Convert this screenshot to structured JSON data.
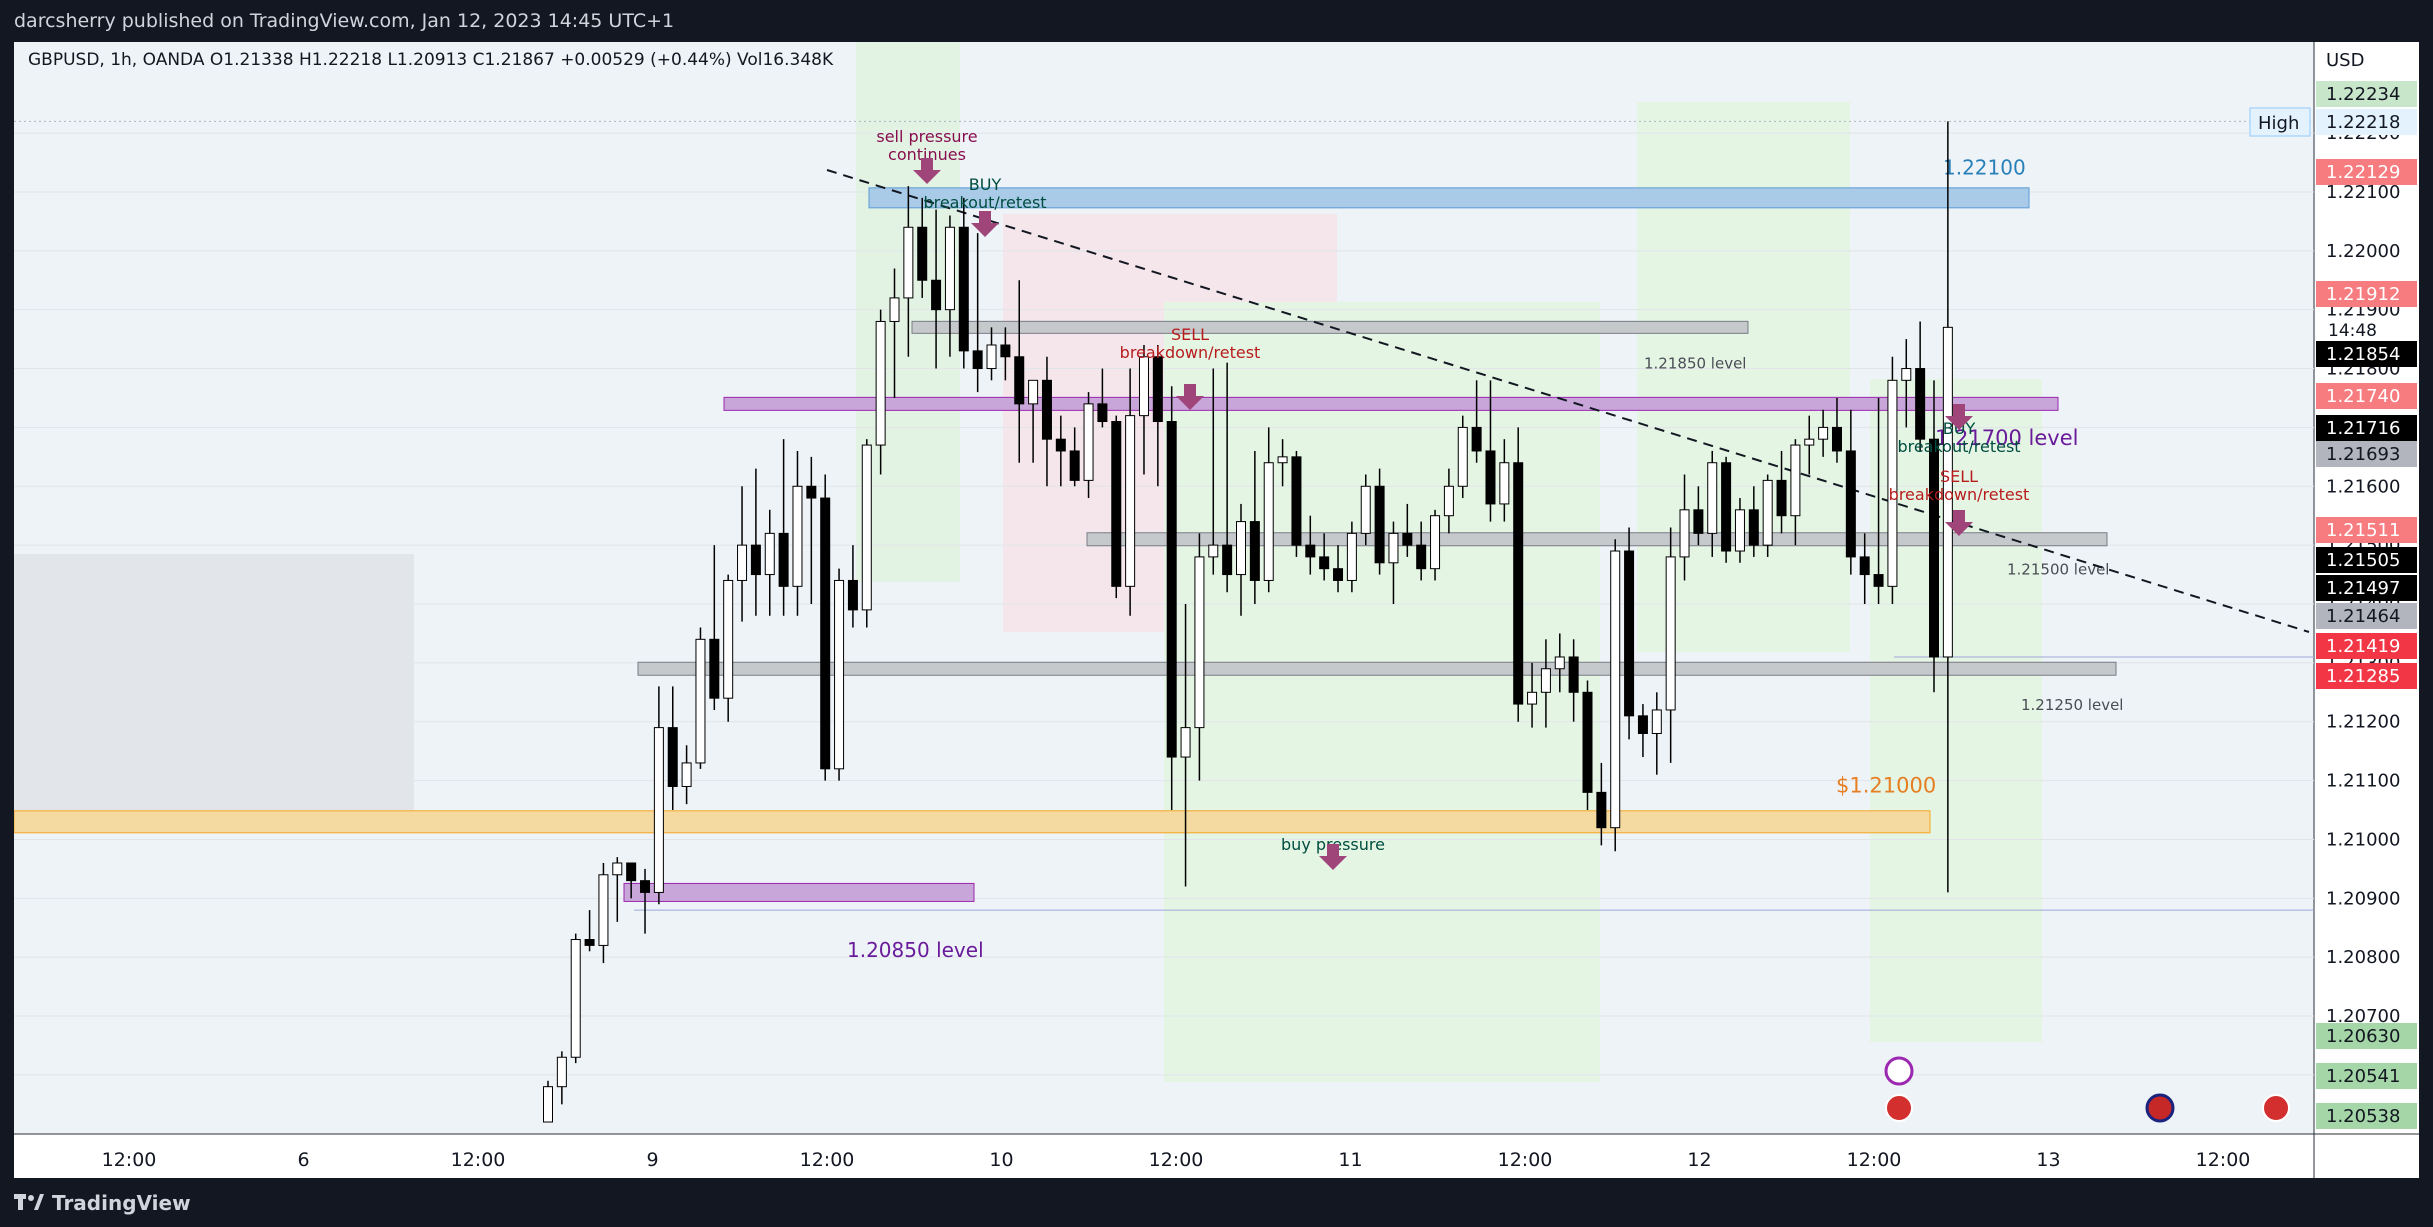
{
  "header": {
    "publish_line": "darcsherry published on TradingView.com, Jan 12, 2023 14:45 UTC+1"
  },
  "footer": {
    "brand": "TradingView"
  },
  "legend": {
    "text": "GBPUSD, 1h, OANDA  O1.21338  H1.22218  L1.20913  C1.21867  +0.00529 (+0.44%)  Vol16.348K"
  },
  "colors": {
    "up": "#ffffff",
    "down": "#000000",
    "wick": "#000000",
    "accent": "#2962ff"
  },
  "chart_data": {
    "type": "candlestick",
    "symbol": "GBPUSD",
    "interval": "1h",
    "exchange": "OANDA",
    "currency": "USD",
    "ylim": [
      1.2052,
      1.2228
    ],
    "x_tick_labels": [
      "12:00",
      "6",
      "12:00",
      "9",
      "12:00",
      "10",
      "12:00",
      "11",
      "12:00",
      "12",
      "12:00",
      "13",
      "12:00"
    ],
    "y_tick_labels": [
      "1.22200",
      "1.22100",
      "1.22000",
      "1.21900",
      "1.21800",
      "1.21700",
      "1.21600",
      "1.21500",
      "1.21400",
      "1.21300",
      "1.21200",
      "1.21100",
      "1.21000",
      "1.20900",
      "1.20800",
      "1.20700",
      "1.20600"
    ],
    "price_badges": [
      {
        "label": "1.22234",
        "color": "#c8e6c9",
        "text_color": "#131722"
      },
      {
        "label": "1.22218",
        "color": "#e3f2fd",
        "text_color": "#131722",
        "prefix": "High"
      },
      {
        "label": "1.22129",
        "color": "#f77c80",
        "text_color": "#ffffff"
      },
      {
        "label": "1.21912",
        "color": "#f77c80",
        "text_color": "#ffffff"
      },
      {
        "label": "1.21854",
        "color": "#000000",
        "text_color": "#ffffff",
        "extra": "14:48"
      },
      {
        "label": "1.21740",
        "color": "#f77c80",
        "text_color": "#ffffff"
      },
      {
        "label": "1.21716",
        "color": "#000000",
        "text_color": "#ffffff"
      },
      {
        "label": "1.21693",
        "color": "#b2b5be",
        "text_color": "#131722"
      },
      {
        "label": "1.21511",
        "color": "#f77c80",
        "text_color": "#ffffff"
      },
      {
        "label": "1.21505",
        "color": "#000000",
        "text_color": "#ffffff"
      },
      {
        "label": "1.21497",
        "color": "#000000",
        "text_color": "#ffffff"
      },
      {
        "label": "1.21464",
        "color": "#b2b5be",
        "text_color": "#131722"
      },
      {
        "label": "1.21419",
        "color": "#f23645",
        "text_color": "#ffffff"
      },
      {
        "label": "1.21285",
        "color": "#f23645",
        "text_color": "#ffffff"
      },
      {
        "label": "1.20630",
        "color": "#a5d6a7",
        "text_color": "#131722"
      },
      {
        "label": "1.20541",
        "color": "#a5d6a7",
        "text_color": "#131722"
      },
      {
        "label": "1.20538",
        "color": "#a5d6a7",
        "text_color": "#131722"
      }
    ],
    "levels": [
      {
        "label": "1.22100",
        "price": 1.2208,
        "color": "#5b9bd5"
      },
      {
        "label": "1.21850 level",
        "price": 1.2186,
        "color": "#787b86"
      },
      {
        "label": "1.21700 level",
        "price": 1.2172,
        "color": "#9c27b0"
      },
      {
        "label": "1.21500 level",
        "price": 1.215,
        "color": "#787b86"
      },
      {
        "label": "1.21250 level",
        "price": 1.2128,
        "color": "#787b86"
      },
      {
        "label": "$1.21000",
        "price": 1.2101,
        "color": "#f5a623"
      },
      {
        "label": "1.20850 level",
        "price": 1.2089,
        "color": "#9c27b0"
      }
    ],
    "annotations": [
      {
        "text": "sell pressure continues",
        "lines": [
          "sell pressure",
          "continues"
        ],
        "color": "#880e4f",
        "kind": "arrow-down"
      },
      {
        "text": "BUY breakout/retest",
        "lines": [
          "BUY",
          "breakout/retest"
        ],
        "color": "#004d40",
        "kind": "arrow-up"
      },
      {
        "text": "SELL breakdown/retest",
        "lines": [
          "SELL",
          "breakdown/retest"
        ],
        "color": "#b71c1c",
        "kind": "arrow-down"
      },
      {
        "text": "buy pressure",
        "lines": [
          "buy pressure"
        ],
        "color": "#004d40",
        "kind": "arrow-up"
      },
      {
        "text": "BUY breakout/retest",
        "lines": [
          "BUY",
          "breakout/retest"
        ],
        "color": "#004d40",
        "kind": "arrow-up"
      },
      {
        "text": "SELL breakdown/retest",
        "lines": [
          "SELL",
          "breakdown/retest"
        ],
        "color": "#b71c1c",
        "kind": "arrow-down"
      }
    ],
    "candles": [
      {
        "o": 1.2052,
        "h": 1.2059,
        "l": 1.2052,
        "c": 1.2058
      },
      {
        "o": 1.2058,
        "h": 1.2064,
        "l": 1.2055,
        "c": 1.2063
      },
      {
        "o": 1.2063,
        "h": 1.2084,
        "l": 1.2062,
        "c": 1.2083
      },
      {
        "o": 1.2083,
        "h": 1.2088,
        "l": 1.2081,
        "c": 1.2082
      },
      {
        "o": 1.2082,
        "h": 1.2096,
        "l": 1.2079,
        "c": 1.2094
      },
      {
        "o": 1.2094,
        "h": 1.2097,
        "l": 1.2086,
        "c": 1.2096
      },
      {
        "o": 1.2096,
        "h": 1.2096,
        "l": 1.209,
        "c": 1.2093
      },
      {
        "o": 1.2093,
        "h": 1.2095,
        "l": 1.2084,
        "c": 1.2091
      },
      {
        "o": 1.2091,
        "h": 1.2126,
        "l": 1.2089,
        "c": 1.2119
      },
      {
        "o": 1.2119,
        "h": 1.2126,
        "l": 1.2105,
        "c": 1.2109
      },
      {
        "o": 1.2109,
        "h": 1.2116,
        "l": 1.2106,
        "c": 1.2113
      },
      {
        "o": 1.2113,
        "h": 1.2136,
        "l": 1.2112,
        "c": 1.2134
      },
      {
        "o": 1.2134,
        "h": 1.215,
        "l": 1.2122,
        "c": 1.2124
      },
      {
        "o": 1.2124,
        "h": 1.2145,
        "l": 1.212,
        "c": 1.2144
      },
      {
        "o": 1.2144,
        "h": 1.216,
        "l": 1.2137,
        "c": 1.215
      },
      {
        "o": 1.215,
        "h": 1.2163,
        "l": 1.2138,
        "c": 1.2145
      },
      {
        "o": 1.2145,
        "h": 1.2156,
        "l": 1.2138,
        "c": 1.2152
      },
      {
        "o": 1.2152,
        "h": 1.2168,
        "l": 1.2138,
        "c": 1.2143
      },
      {
        "o": 1.2143,
        "h": 1.2166,
        "l": 1.2138,
        "c": 1.216
      },
      {
        "o": 1.216,
        "h": 1.2165,
        "l": 1.214,
        "c": 1.2158
      },
      {
        "o": 1.2158,
        "h": 1.2162,
        "l": 1.211,
        "c": 1.2112
      },
      {
        "o": 1.2112,
        "h": 1.2146,
        "l": 1.211,
        "c": 1.2144
      },
      {
        "o": 1.2144,
        "h": 1.215,
        "l": 1.2136,
        "c": 1.2139
      },
      {
        "o": 1.2139,
        "h": 1.2168,
        "l": 1.2136,
        "c": 1.2167
      },
      {
        "o": 1.2167,
        "h": 1.219,
        "l": 1.2162,
        "c": 1.2188
      },
      {
        "o": 1.2188,
        "h": 1.2197,
        "l": 1.2175,
        "c": 1.2192
      },
      {
        "o": 1.2192,
        "h": 1.2211,
        "l": 1.2182,
        "c": 1.2204
      },
      {
        "o": 1.2204,
        "h": 1.2209,
        "l": 1.2192,
        "c": 1.2195
      },
      {
        "o": 1.2195,
        "h": 1.2207,
        "l": 1.218,
        "c": 1.219
      },
      {
        "o": 1.219,
        "h": 1.2206,
        "l": 1.2182,
        "c": 1.2204
      },
      {
        "o": 1.2204,
        "h": 1.2209,
        "l": 1.218,
        "c": 1.2183
      },
      {
        "o": 1.2183,
        "h": 1.2203,
        "l": 1.2176,
        "c": 1.218
      },
      {
        "o": 1.218,
        "h": 1.2187,
        "l": 1.2178,
        "c": 1.2184
      },
      {
        "o": 1.2184,
        "h": 1.2187,
        "l": 1.2178,
        "c": 1.2182
      },
      {
        "o": 1.2182,
        "h": 1.2195,
        "l": 1.2164,
        "c": 1.2174
      },
      {
        "o": 1.2174,
        "h": 1.2178,
        "l": 1.2164,
        "c": 1.2178
      },
      {
        "o": 1.2178,
        "h": 1.2182,
        "l": 1.216,
        "c": 1.2168
      },
      {
        "o": 1.2168,
        "h": 1.2172,
        "l": 1.216,
        "c": 1.2166
      },
      {
        "o": 1.2166,
        "h": 1.217,
        "l": 1.216,
        "c": 1.2161
      },
      {
        "o": 1.2161,
        "h": 1.2176,
        "l": 1.2158,
        "c": 1.2174
      },
      {
        "o": 1.2174,
        "h": 1.218,
        "l": 1.217,
        "c": 1.2171
      },
      {
        "o": 1.2171,
        "h": 1.2172,
        "l": 1.2141,
        "c": 1.2143
      },
      {
        "o": 1.2143,
        "h": 1.218,
        "l": 1.2138,
        "c": 1.2172
      },
      {
        "o": 1.2172,
        "h": 1.2184,
        "l": 1.2162,
        "c": 1.2182
      },
      {
        "o": 1.2182,
        "h": 1.2184,
        "l": 1.216,
        "c": 1.2171
      },
      {
        "o": 1.2171,
        "h": 1.2177,
        "l": 1.2105,
        "c": 1.2114
      },
      {
        "o": 1.2114,
        "h": 1.214,
        "l": 1.2092,
        "c": 1.2119
      },
      {
        "o": 1.2119,
        "h": 1.2152,
        "l": 1.211,
        "c": 1.2148
      },
      {
        "o": 1.2148,
        "h": 1.218,
        "l": 1.2145,
        "c": 1.215
      },
      {
        "o": 1.215,
        "h": 1.2181,
        "l": 1.2142,
        "c": 1.2145
      },
      {
        "o": 1.2145,
        "h": 1.2157,
        "l": 1.2138,
        "c": 1.2154
      },
      {
        "o": 1.2154,
        "h": 1.2166,
        "l": 1.214,
        "c": 1.2144
      },
      {
        "o": 1.2144,
        "h": 1.217,
        "l": 1.2142,
        "c": 1.2164
      },
      {
        "o": 1.2164,
        "h": 1.2168,
        "l": 1.216,
        "c": 1.2165
      },
      {
        "o": 1.2165,
        "h": 1.2166,
        "l": 1.2148,
        "c": 1.215
      },
      {
        "o": 1.215,
        "h": 1.2155,
        "l": 1.2145,
        "c": 1.2148
      },
      {
        "o": 1.2148,
        "h": 1.2152,
        "l": 1.2144,
        "c": 1.2146
      },
      {
        "o": 1.2146,
        "h": 1.215,
        "l": 1.2142,
        "c": 1.2144
      },
      {
        "o": 1.2144,
        "h": 1.2154,
        "l": 1.2142,
        "c": 1.2152
      },
      {
        "o": 1.2152,
        "h": 1.2162,
        "l": 1.215,
        "c": 1.216
      },
      {
        "o": 1.216,
        "h": 1.2163,
        "l": 1.2145,
        "c": 1.2147
      },
      {
        "o": 1.2147,
        "h": 1.2154,
        "l": 1.214,
        "c": 1.2152
      },
      {
        "o": 1.2152,
        "h": 1.2157,
        "l": 1.2148,
        "c": 1.215
      },
      {
        "o": 1.215,
        "h": 1.2154,
        "l": 1.2144,
        "c": 1.2146
      },
      {
        "o": 1.2146,
        "h": 1.2156,
        "l": 1.2144,
        "c": 1.2155
      },
      {
        "o": 1.2155,
        "h": 1.2163,
        "l": 1.2152,
        "c": 1.216
      },
      {
        "o": 1.216,
        "h": 1.2172,
        "l": 1.2158,
        "c": 1.217
      },
      {
        "o": 1.217,
        "h": 1.2178,
        "l": 1.2164,
        "c": 1.2166
      },
      {
        "o": 1.2166,
        "h": 1.2178,
        "l": 1.2154,
        "c": 1.2157
      },
      {
        "o": 1.2157,
        "h": 1.2168,
        "l": 1.2154,
        "c": 1.2164
      },
      {
        "o": 1.2164,
        "h": 1.217,
        "l": 1.212,
        "c": 1.2123
      },
      {
        "o": 1.2123,
        "h": 1.213,
        "l": 1.2119,
        "c": 1.2125
      },
      {
        "o": 1.2125,
        "h": 1.2134,
        "l": 1.2119,
        "c": 1.2129
      },
      {
        "o": 1.2129,
        "h": 1.2135,
        "l": 1.2125,
        "c": 1.2131
      },
      {
        "o": 1.2131,
        "h": 1.2134,
        "l": 1.212,
        "c": 1.2125
      },
      {
        "o": 1.2125,
        "h": 1.2127,
        "l": 1.2105,
        "c": 1.2108
      },
      {
        "o": 1.2108,
        "h": 1.2113,
        "l": 1.2099,
        "c": 1.2102
      },
      {
        "o": 1.2102,
        "h": 1.2151,
        "l": 1.2098,
        "c": 1.2149
      },
      {
        "o": 1.2149,
        "h": 1.2153,
        "l": 1.2117,
        "c": 1.2121
      },
      {
        "o": 1.2121,
        "h": 1.2123,
        "l": 1.2114,
        "c": 1.2118
      },
      {
        "o": 1.2118,
        "h": 1.2125,
        "l": 1.2111,
        "c": 1.2122
      },
      {
        "o": 1.2122,
        "h": 1.2153,
        "l": 1.2113,
        "c": 1.2148
      },
      {
        "o": 1.2148,
        "h": 1.2162,
        "l": 1.2144,
        "c": 1.2156
      },
      {
        "o": 1.2156,
        "h": 1.216,
        "l": 1.215,
        "c": 1.2152
      },
      {
        "o": 1.2152,
        "h": 1.2166,
        "l": 1.2148,
        "c": 1.2164
      },
      {
        "o": 1.2164,
        "h": 1.2165,
        "l": 1.2147,
        "c": 1.2149
      },
      {
        "o": 1.2149,
        "h": 1.2158,
        "l": 1.2147,
        "c": 1.2156
      },
      {
        "o": 1.2156,
        "h": 1.216,
        "l": 1.2148,
        "c": 1.215
      },
      {
        "o": 1.215,
        "h": 1.2162,
        "l": 1.2148,
        "c": 1.2161
      },
      {
        "o": 1.2161,
        "h": 1.2166,
        "l": 1.2152,
        "c": 1.2155
      },
      {
        "o": 1.2155,
        "h": 1.2168,
        "l": 1.215,
        "c": 1.2167
      },
      {
        "o": 1.2167,
        "h": 1.2172,
        "l": 1.2162,
        "c": 1.2168
      },
      {
        "o": 1.2168,
        "h": 1.2173,
        "l": 1.2165,
        "c": 1.217
      },
      {
        "o": 1.217,
        "h": 1.2175,
        "l": 1.2164,
        "c": 1.2166
      },
      {
        "o": 1.2166,
        "h": 1.2173,
        "l": 1.2145,
        "c": 1.2148
      },
      {
        "o": 1.2148,
        "h": 1.2152,
        "l": 1.214,
        "c": 1.2145
      },
      {
        "o": 1.2145,
        "h": 1.2175,
        "l": 1.214,
        "c": 1.2143
      },
      {
        "o": 1.2143,
        "h": 1.2182,
        "l": 1.214,
        "c": 1.2178
      },
      {
        "o": 1.2178,
        "h": 1.2185,
        "l": 1.217,
        "c": 1.218
      },
      {
        "o": 1.218,
        "h": 1.2188,
        "l": 1.2166,
        "c": 1.2168
      },
      {
        "o": 1.2168,
        "h": 1.2178,
        "l": 1.2125,
        "c": 1.2131
      },
      {
        "o": 1.2131,
        "h": 1.2222,
        "l": 1.2091,
        "c": 1.2187
      }
    ]
  }
}
